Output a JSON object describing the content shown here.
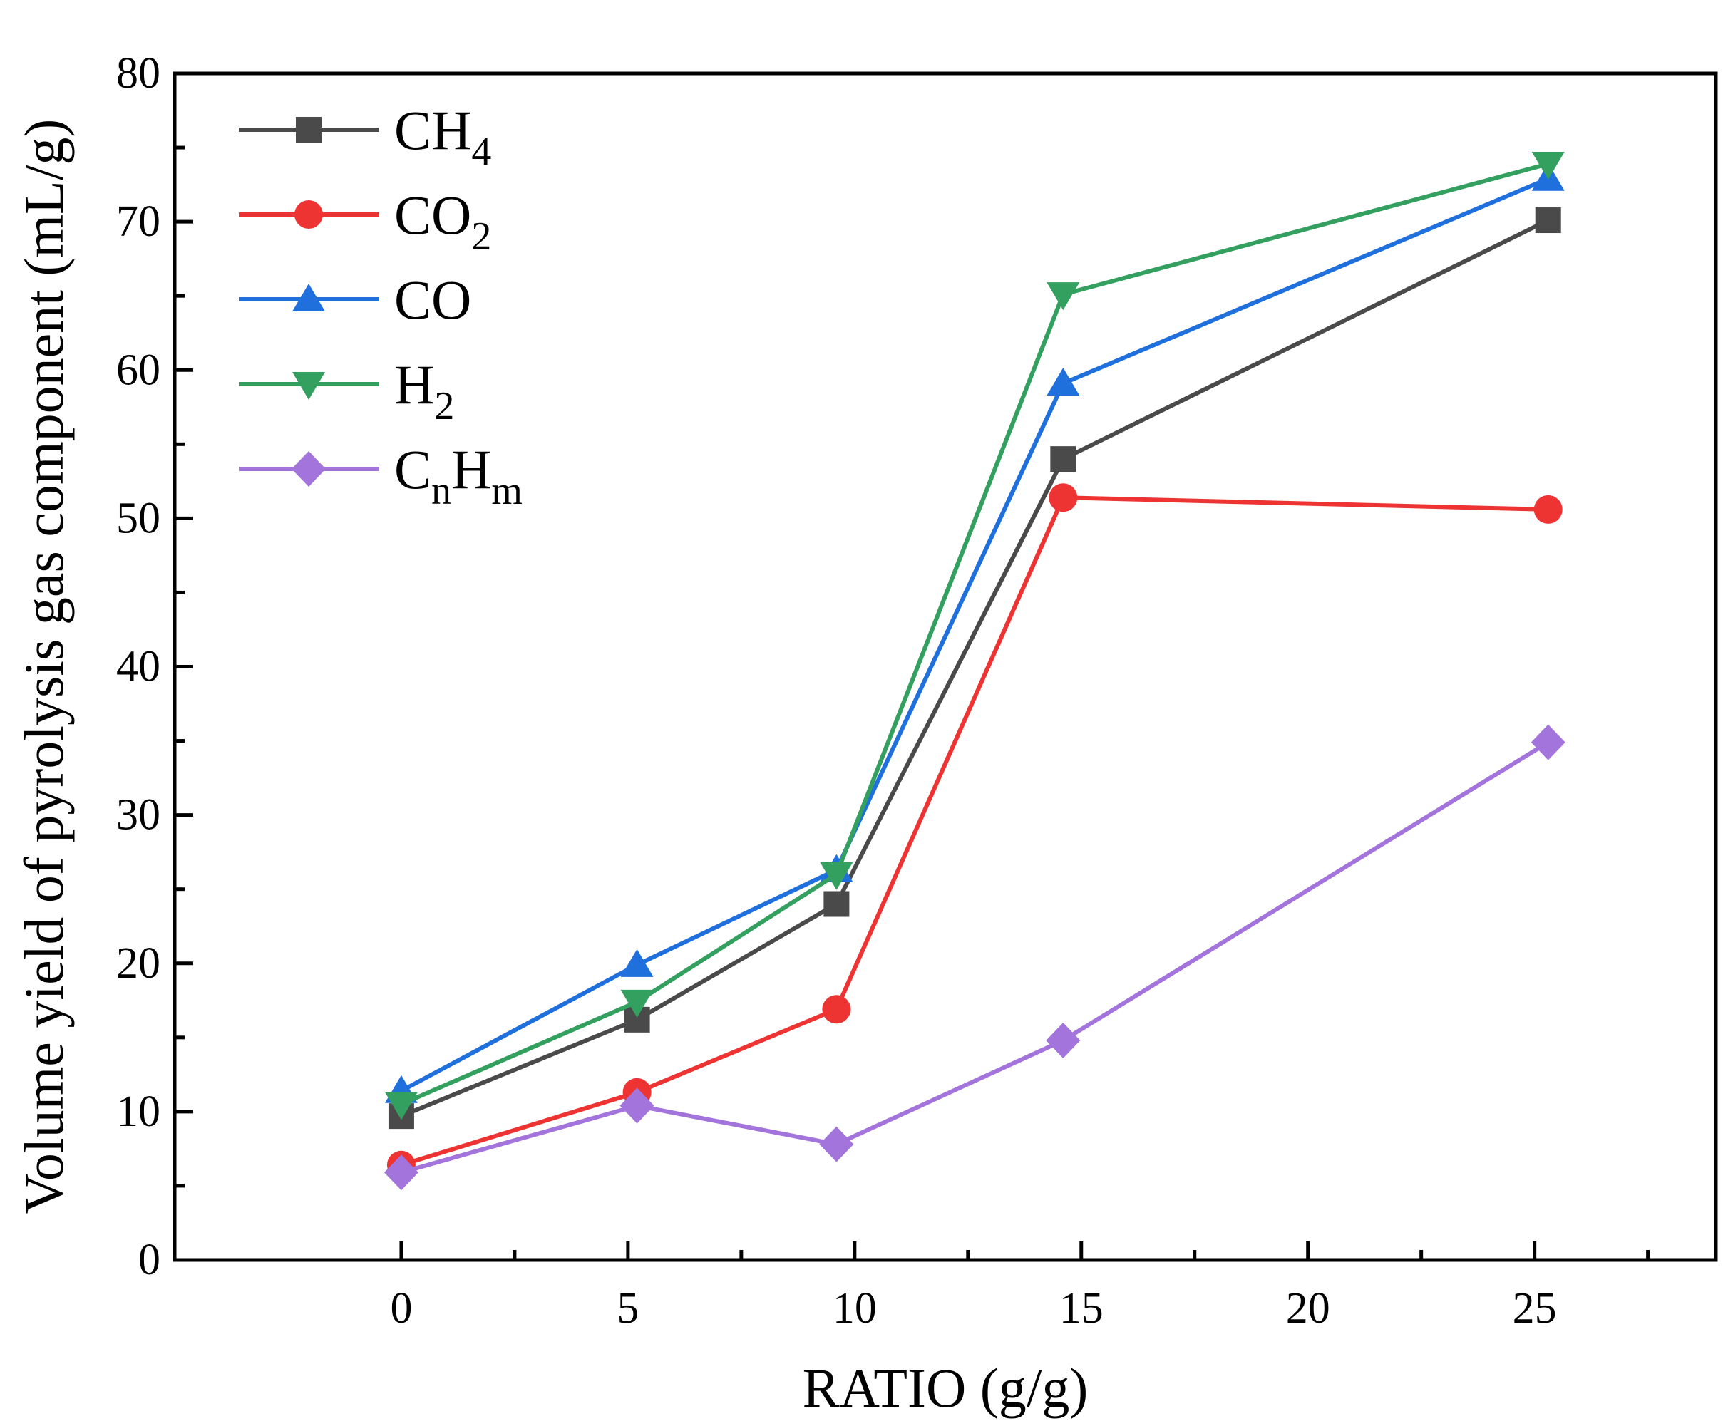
{
  "chart_data": {
    "type": "line",
    "title": "",
    "xlabel": "RATIO (g/g)",
    "ylabel": "Volume yield of pyrolysis gas component (mL/g)",
    "xlim": [
      -5,
      29
    ],
    "ylim": [
      0,
      80
    ],
    "x_ticks": [
      0,
      5,
      10,
      15,
      20,
      25
    ],
    "y_ticks": [
      0,
      10,
      20,
      30,
      40,
      50,
      60,
      70,
      80
    ],
    "grid": false,
    "legend_position": "top-left",
    "series": [
      {
        "name": "CH4",
        "label_main": "CH",
        "label_sub": "4",
        "label_tail": "",
        "label_tail_sub": "",
        "marker": "square",
        "color": "#4a4a4a",
        "x": [
          0,
          5.2,
          9.6,
          14.6,
          25.3
        ],
        "values": [
          9.7,
          16.2,
          24.0,
          54.0,
          70.1
        ]
      },
      {
        "name": "CO2",
        "label_main": "CO",
        "label_sub": "2",
        "label_tail": "",
        "label_tail_sub": "",
        "marker": "circle",
        "color": "#ee3333",
        "x": [
          0,
          5.2,
          9.6,
          14.6,
          25.3
        ],
        "values": [
          6.4,
          11.3,
          16.9,
          51.4,
          50.6
        ]
      },
      {
        "name": "CO",
        "label_main": "CO",
        "label_sub": "",
        "label_tail": "",
        "label_tail_sub": "",
        "marker": "triangle-up",
        "color": "#1f6fdd",
        "x": [
          0,
          5.2,
          9.6,
          14.6,
          25.3
        ],
        "values": [
          11.4,
          19.9,
          26.3,
          59.1,
          72.9
        ]
      },
      {
        "name": "H2",
        "label_main": "H",
        "label_sub": "2",
        "label_tail": "",
        "label_tail_sub": "",
        "marker": "triangle-down",
        "color": "#33a060",
        "x": [
          0,
          5.2,
          9.6,
          14.6,
          25.3
        ],
        "values": [
          10.5,
          17.4,
          26.0,
          65.1,
          73.9
        ]
      },
      {
        "name": "CnHm",
        "label_main": "C",
        "label_sub": "n",
        "label_tail": "H",
        "label_tail_sub": "m",
        "marker": "diamond",
        "color": "#a374db",
        "x": [
          0,
          5.2,
          9.6,
          14.6,
          25.3
        ],
        "values": [
          5.9,
          10.4,
          7.8,
          14.8,
          34.9
        ]
      }
    ]
  }
}
